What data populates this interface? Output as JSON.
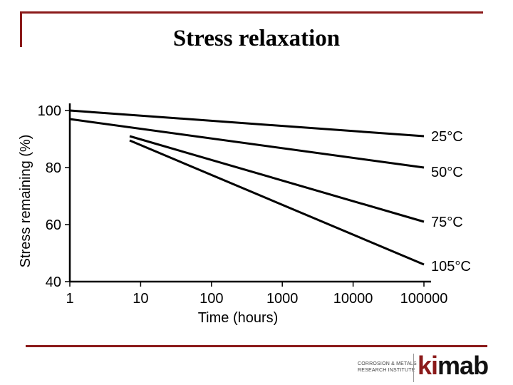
{
  "slide": {
    "title": "Stress relaxation",
    "accent_color": "#8b1a1a"
  },
  "chart_data": {
    "type": "line",
    "title": "",
    "xlabel": "Time (hours)",
    "ylabel": "Stress remaining (%)",
    "xscale": "log",
    "xlim": [
      1,
      100000
    ],
    "ylim": [
      40,
      100
    ],
    "xticks": [
      "1",
      "10",
      "100",
      "1000",
      "10000",
      "100000"
    ],
    "yticks": [
      "100",
      "80",
      "60",
      "40"
    ],
    "grid": false,
    "legend": "labels at line ends (right)",
    "series": [
      {
        "name": "25°C",
        "x": [
          1,
          100000
        ],
        "y": [
          100,
          91
        ]
      },
      {
        "name": "50°C",
        "x": [
          1,
          100000
        ],
        "y": [
          97,
          80
        ]
      },
      {
        "name": "75°C",
        "x": [
          7,
          100000
        ],
        "y": [
          91,
          61
        ]
      },
      {
        "name": "105°C",
        "x": [
          7,
          100000
        ],
        "y": [
          89.5,
          46
        ]
      }
    ],
    "line_color": "#000000"
  },
  "logo": {
    "line1": "CORROSION & METALS",
    "line2": "RESEARCH INSTITUTE",
    "wordmark_left": "ki",
    "wordmark_right": "mab",
    "wordmark_left_color": "#8b1a1a",
    "wordmark_right_color": "#111111"
  }
}
